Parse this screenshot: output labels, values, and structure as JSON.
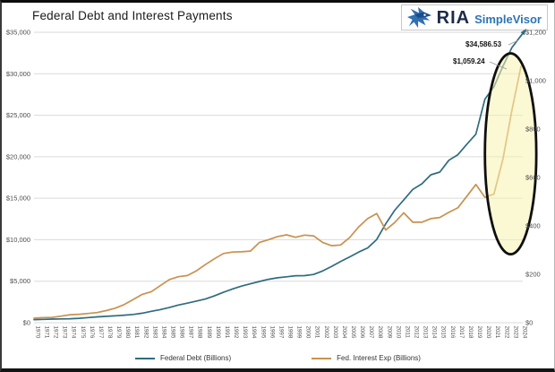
{
  "header": {
    "title": "Federal Debt and Interest Payments",
    "brand": {
      "name": "RIA",
      "product": "SimpleVisor"
    }
  },
  "annotations": {
    "debt_value_label": "$34,586.53",
    "interest_value_label": "$1,059.24"
  },
  "colors": {
    "debt_line": "#2f6b80",
    "interest_line": "#c9914f",
    "grid": "#dadada",
    "axis_text": "#4d4d4d",
    "ellipse_fill": "#f8f3b0",
    "ellipse_stroke": "#0f0f0f",
    "brand_navy": "#1b2b4a",
    "brand_blue": "#2e74b5"
  },
  "legend": [
    {
      "label": "Federal Debt (Billions)",
      "color": "#2f6b80"
    },
    {
      "label": "Fed. Interest Exp (Billions)",
      "color": "#c9914f"
    }
  ],
  "chart_data": {
    "type": "line",
    "title": "Federal Debt and Interest Payments",
    "grid": true,
    "legend_position": "bottom",
    "x": [
      1970,
      1971,
      1972,
      1973,
      1974,
      1975,
      1976,
      1977,
      1978,
      1979,
      1980,
      1981,
      1982,
      1983,
      1984,
      1985,
      1986,
      1987,
      1988,
      1989,
      1990,
      1991,
      1992,
      1993,
      1994,
      1995,
      1996,
      1997,
      1998,
      1999,
      2000,
      2001,
      2002,
      2003,
      2004,
      2005,
      2006,
      2007,
      2008,
      2009,
      2010,
      2011,
      2012,
      2013,
      2014,
      2015,
      2016,
      2017,
      2018,
      2019,
      2020,
      2021,
      2022,
      2023,
      2024
    ],
    "series": [
      {
        "name": "Federal Debt (Billions)",
        "axis": "left",
        "color": "#2f6b80",
        "end_label": "$34,586.53",
        "values": [
          371,
          398,
          427,
          458,
          475,
          533,
          620,
          699,
          772,
          827,
          908,
          998,
          1142,
          1377,
          1572,
          1823,
          2125,
          2350,
          2602,
          2857,
          3233,
          3665,
          4065,
          4411,
          4693,
          4974,
          5225,
          5413,
          5526,
          5656,
          5674,
          5807,
          6228,
          6783,
          7379,
          7933,
          8507,
          9008,
          10025,
          11910,
          13562,
          14790,
          16066,
          16738,
          17824,
          18151,
          19573,
          20245,
          21516,
          22719,
          26945,
          28429,
          30928,
          33167,
          34586.53
        ]
      },
      {
        "name": "Fed. Interest Exp (Billions)",
        "axis": "right",
        "color": "#c9914f",
        "end_label": "$1,059.24",
        "values": [
          19,
          21,
          22,
          27,
          33,
          35,
          38,
          42,
          50,
          60,
          75,
          96,
          117,
          128,
          153,
          178,
          190,
          195,
          214,
          240,
          264,
          286,
          292,
          293,
          296,
          332,
          343,
          356,
          363,
          353,
          362,
          359,
          332,
          318,
          321,
          352,
          396,
          430,
          451,
          383,
          414,
          454,
          415,
          415,
          430,
          435,
          456,
          475,
          523,
          571,
          518,
          532,
          677,
          879,
          1059.24
        ]
      }
    ],
    "left_axis": {
      "min": 0,
      "max": 35000,
      "step": 5000,
      "tick_format": "$#,##0"
    },
    "right_axis": {
      "min": 0,
      "max": 1200,
      "step": 200,
      "tick_format": "$#,##0"
    },
    "highlight_ellipse": {
      "center_year": 2022.85,
      "center_value_right_axis": 698,
      "rx_years": 2.85,
      "ry_value_right_axis": 415,
      "fill": "#f8f3b0",
      "fill_opacity": 0.55,
      "stroke": "#0f0f0f"
    }
  }
}
